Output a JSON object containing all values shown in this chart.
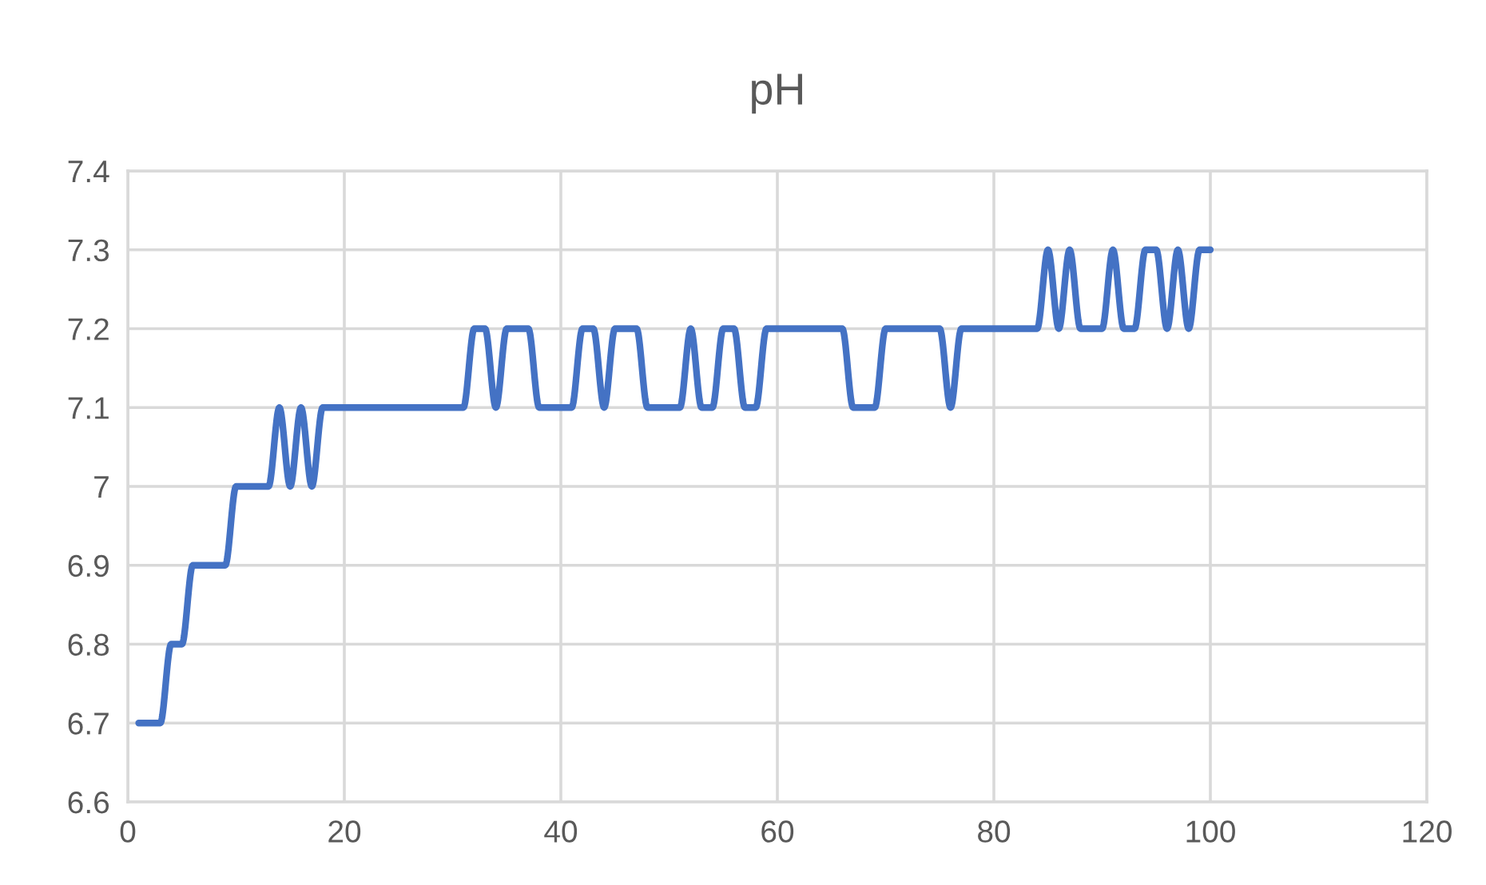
{
  "chart_data": {
    "type": "line",
    "title": "pH",
    "x": [
      1,
      2,
      3,
      4,
      5,
      6,
      7,
      8,
      9,
      10,
      11,
      12,
      13,
      14,
      15,
      16,
      17,
      18,
      19,
      20,
      21,
      22,
      23,
      24,
      25,
      26,
      27,
      28,
      29,
      30,
      31,
      32,
      33,
      34,
      35,
      36,
      37,
      38,
      39,
      40,
      41,
      42,
      43,
      44,
      45,
      46,
      47,
      48,
      49,
      50,
      51,
      52,
      53,
      54,
      55,
      56,
      57,
      58,
      59,
      60,
      61,
      62,
      63,
      64,
      65,
      66,
      67,
      68,
      69,
      70,
      71,
      72,
      73,
      74,
      75,
      76,
      77,
      78,
      79,
      80,
      81,
      82,
      83,
      84,
      85,
      86,
      87,
      88,
      89,
      90,
      91,
      92,
      93,
      94,
      95,
      96,
      97,
      98,
      99,
      100
    ],
    "series": [
      {
        "color": "#4472c4",
        "values": [
          6.7,
          6.7,
          6.7,
          6.8,
          6.8,
          6.9,
          6.9,
          6.9,
          6.9,
          7.0,
          7.0,
          7.0,
          7.0,
          7.1,
          7.0,
          7.1,
          7.0,
          7.1,
          7.1,
          7.1,
          7.1,
          7.1,
          7.1,
          7.1,
          7.1,
          7.1,
          7.1,
          7.1,
          7.1,
          7.1,
          7.1,
          7.2,
          7.2,
          7.1,
          7.2,
          7.2,
          7.2,
          7.1,
          7.1,
          7.1,
          7.1,
          7.2,
          7.2,
          7.1,
          7.2,
          7.2,
          7.2,
          7.1,
          7.1,
          7.1,
          7.1,
          7.2,
          7.1,
          7.1,
          7.2,
          7.2,
          7.1,
          7.1,
          7.2,
          7.2,
          7.2,
          7.2,
          7.2,
          7.2,
          7.2,
          7.2,
          7.1,
          7.1,
          7.1,
          7.2,
          7.2,
          7.2,
          7.2,
          7.2,
          7.2,
          7.1,
          7.2,
          7.2,
          7.2,
          7.2,
          7.2,
          7.2,
          7.2,
          7.2,
          7.3,
          7.2,
          7.3,
          7.2,
          7.2,
          7.2,
          7.3,
          7.2,
          7.2,
          7.3,
          7.3,
          7.2,
          7.3,
          7.2,
          7.3,
          7.3
        ]
      }
    ],
    "xlim": [
      0,
      120
    ],
    "xticks": [
      0,
      20,
      40,
      60,
      80,
      100,
      120
    ],
    "ylim": [
      6.6,
      7.4
    ],
    "yticks": [
      6.6,
      6.7,
      6.8,
      6.9,
      7,
      7.1,
      7.2,
      7.3,
      7.4
    ],
    "grid": true,
    "marker": "none",
    "line_style": "solid"
  }
}
